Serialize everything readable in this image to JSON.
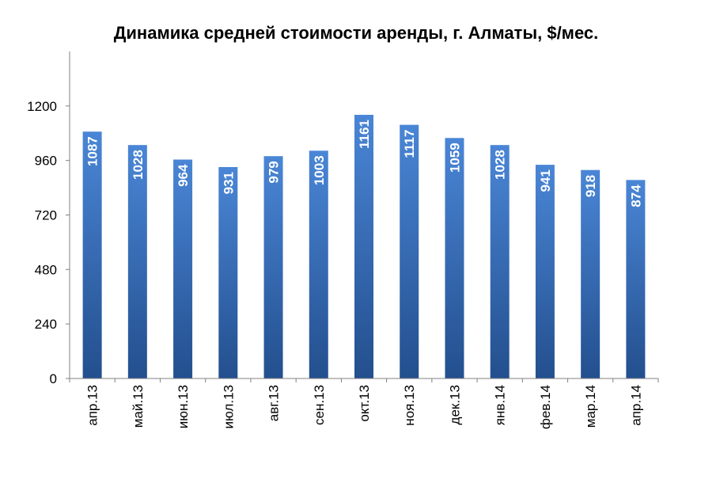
{
  "chart_data": {
    "type": "bar",
    "title": "Динамика средней стоимости аренды, г. Алматы, $/мес.",
    "categories": [
      "апр.13",
      "май.13",
      "июн.13",
      "июл.13",
      "авг.13",
      "сен.13",
      "окт.13",
      "ноя.13",
      "дек.13",
      "янв.14",
      "фев.14",
      "мар.14",
      "апр.14"
    ],
    "values": [
      1087,
      1028,
      964,
      931,
      979,
      1003,
      1161,
      1117,
      1059,
      1028,
      941,
      918,
      874
    ],
    "yticks": [
      0,
      240,
      480,
      720,
      960,
      1200
    ],
    "ylim": [
      0,
      1440
    ],
    "grid": false,
    "legend": "none",
    "data_labels": "inside-vertical",
    "colors": {
      "bar_top": "#4a86d6",
      "bar_bottom": "#234f8e",
      "axis": "#808080",
      "label": "#ffffff"
    }
  }
}
